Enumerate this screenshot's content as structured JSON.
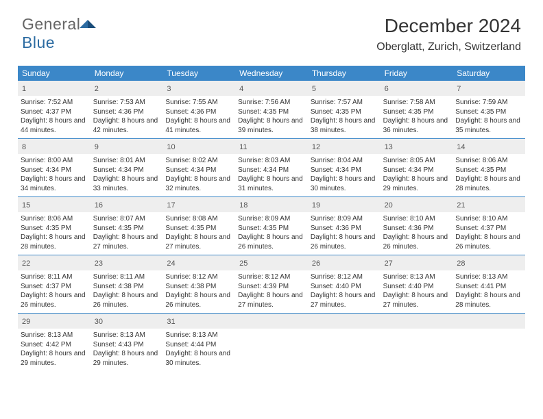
{
  "brand": {
    "part1": "General",
    "part2": "Blue"
  },
  "title": "December 2024",
  "location": "Oberglatt, Zurich, Switzerland",
  "colors": {
    "headerBar": "#3b87c8",
    "dayNumBg": "#eeeeee",
    "weekBorder": "#3b87c8",
    "textDark": "#333333",
    "brandGray": "#666666",
    "brandBlue": "#2d6ca2"
  },
  "dayNames": [
    "Sunday",
    "Monday",
    "Tuesday",
    "Wednesday",
    "Thursday",
    "Friday",
    "Saturday"
  ],
  "weeks": [
    [
      {
        "n": "1",
        "sr": "7:52 AM",
        "ss": "4:37 PM",
        "dl": "8 hours and 44 minutes."
      },
      {
        "n": "2",
        "sr": "7:53 AM",
        "ss": "4:36 PM",
        "dl": "8 hours and 42 minutes."
      },
      {
        "n": "3",
        "sr": "7:55 AM",
        "ss": "4:36 PM",
        "dl": "8 hours and 41 minutes."
      },
      {
        "n": "4",
        "sr": "7:56 AM",
        "ss": "4:35 PM",
        "dl": "8 hours and 39 minutes."
      },
      {
        "n": "5",
        "sr": "7:57 AM",
        "ss": "4:35 PM",
        "dl": "8 hours and 38 minutes."
      },
      {
        "n": "6",
        "sr": "7:58 AM",
        "ss": "4:35 PM",
        "dl": "8 hours and 36 minutes."
      },
      {
        "n": "7",
        "sr": "7:59 AM",
        "ss": "4:35 PM",
        "dl": "8 hours and 35 minutes."
      }
    ],
    [
      {
        "n": "8",
        "sr": "8:00 AM",
        "ss": "4:34 PM",
        "dl": "8 hours and 34 minutes."
      },
      {
        "n": "9",
        "sr": "8:01 AM",
        "ss": "4:34 PM",
        "dl": "8 hours and 33 minutes."
      },
      {
        "n": "10",
        "sr": "8:02 AM",
        "ss": "4:34 PM",
        "dl": "8 hours and 32 minutes."
      },
      {
        "n": "11",
        "sr": "8:03 AM",
        "ss": "4:34 PM",
        "dl": "8 hours and 31 minutes."
      },
      {
        "n": "12",
        "sr": "8:04 AM",
        "ss": "4:34 PM",
        "dl": "8 hours and 30 minutes."
      },
      {
        "n": "13",
        "sr": "8:05 AM",
        "ss": "4:34 PM",
        "dl": "8 hours and 29 minutes."
      },
      {
        "n": "14",
        "sr": "8:06 AM",
        "ss": "4:35 PM",
        "dl": "8 hours and 28 minutes."
      }
    ],
    [
      {
        "n": "15",
        "sr": "8:06 AM",
        "ss": "4:35 PM",
        "dl": "8 hours and 28 minutes."
      },
      {
        "n": "16",
        "sr": "8:07 AM",
        "ss": "4:35 PM",
        "dl": "8 hours and 27 minutes."
      },
      {
        "n": "17",
        "sr": "8:08 AM",
        "ss": "4:35 PM",
        "dl": "8 hours and 27 minutes."
      },
      {
        "n": "18",
        "sr": "8:09 AM",
        "ss": "4:35 PM",
        "dl": "8 hours and 26 minutes."
      },
      {
        "n": "19",
        "sr": "8:09 AM",
        "ss": "4:36 PM",
        "dl": "8 hours and 26 minutes."
      },
      {
        "n": "20",
        "sr": "8:10 AM",
        "ss": "4:36 PM",
        "dl": "8 hours and 26 minutes."
      },
      {
        "n": "21",
        "sr": "8:10 AM",
        "ss": "4:37 PM",
        "dl": "8 hours and 26 minutes."
      }
    ],
    [
      {
        "n": "22",
        "sr": "8:11 AM",
        "ss": "4:37 PM",
        "dl": "8 hours and 26 minutes."
      },
      {
        "n": "23",
        "sr": "8:11 AM",
        "ss": "4:38 PM",
        "dl": "8 hours and 26 minutes."
      },
      {
        "n": "24",
        "sr": "8:12 AM",
        "ss": "4:38 PM",
        "dl": "8 hours and 26 minutes."
      },
      {
        "n": "25",
        "sr": "8:12 AM",
        "ss": "4:39 PM",
        "dl": "8 hours and 27 minutes."
      },
      {
        "n": "26",
        "sr": "8:12 AM",
        "ss": "4:40 PM",
        "dl": "8 hours and 27 minutes."
      },
      {
        "n": "27",
        "sr": "8:13 AM",
        "ss": "4:40 PM",
        "dl": "8 hours and 27 minutes."
      },
      {
        "n": "28",
        "sr": "8:13 AM",
        "ss": "4:41 PM",
        "dl": "8 hours and 28 minutes."
      }
    ],
    [
      {
        "n": "29",
        "sr": "8:13 AM",
        "ss": "4:42 PM",
        "dl": "8 hours and 29 minutes."
      },
      {
        "n": "30",
        "sr": "8:13 AM",
        "ss": "4:43 PM",
        "dl": "8 hours and 29 minutes."
      },
      {
        "n": "31",
        "sr": "8:13 AM",
        "ss": "4:44 PM",
        "dl": "8 hours and 30 minutes."
      },
      null,
      null,
      null,
      null
    ]
  ],
  "labels": {
    "sunrise": "Sunrise:",
    "sunset": "Sunset:",
    "daylight": "Daylight:"
  }
}
